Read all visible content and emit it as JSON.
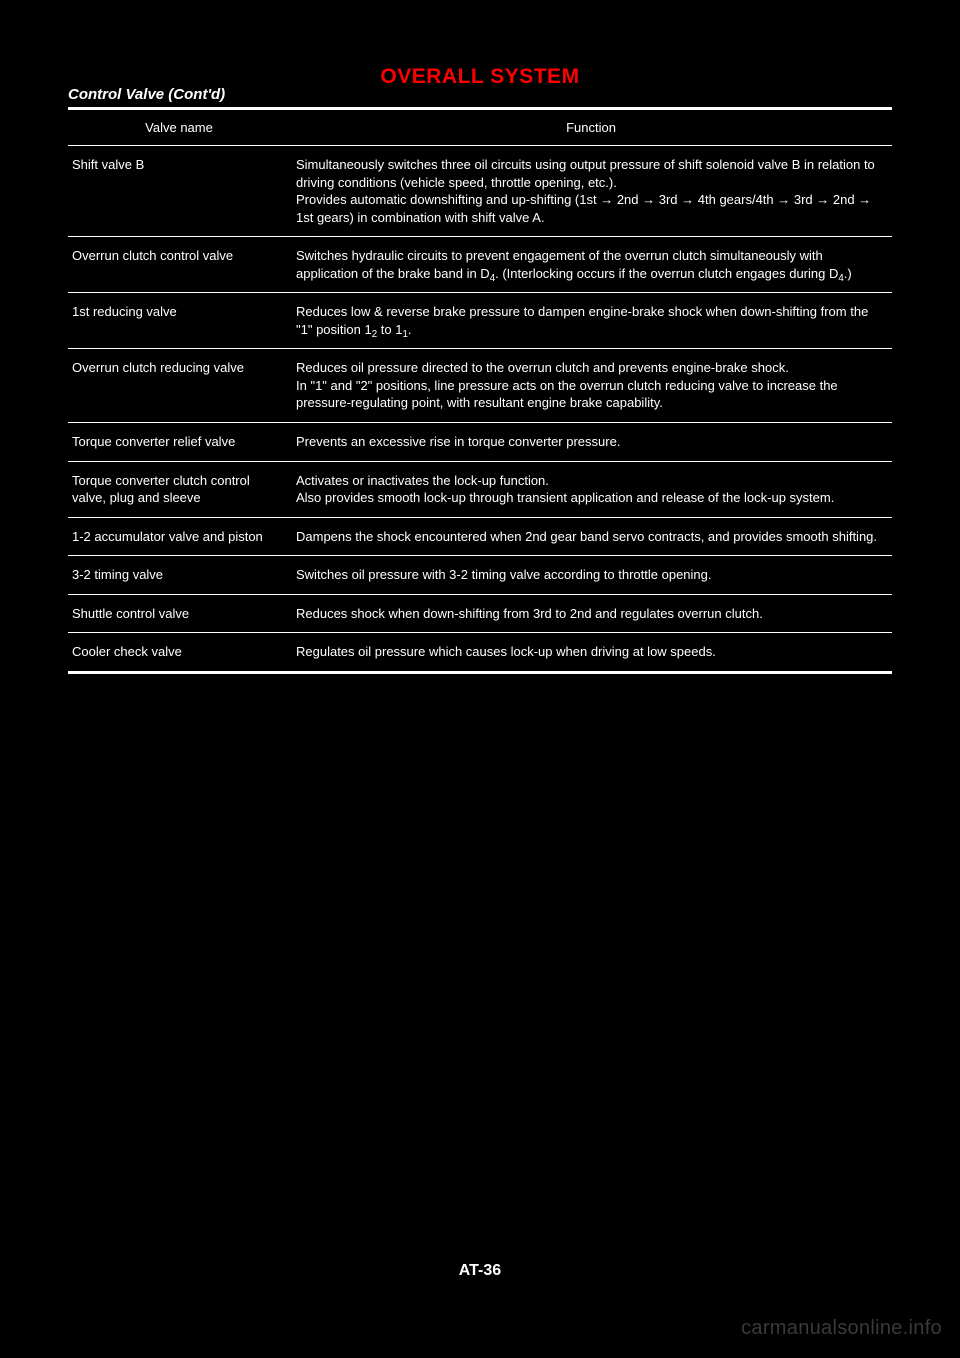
{
  "header": {
    "section_title": "OVERALL SYSTEM",
    "subheading": "Control Valve (Cont'd)"
  },
  "table": {
    "columns": [
      "Valve name",
      "Function"
    ],
    "rows": [
      {
        "name": "Shift valve B",
        "func": "Simultaneously switches three oil circuits using output pressure of shift solenoid valve B in relation to driving conditions (vehicle speed, throttle opening, etc.).\nProvides automatic downshifting and up-shifting (1st → 2nd → 3rd → 4th gears/4th → 3rd → 2nd → 1st gears) in combination with shift valve A."
      },
      {
        "name": "Overrun clutch control valve",
        "func": "Switches hydraulic circuits to prevent engagement of the overrun clutch simultaneously with application of the brake band in D<sub>4</sub>. (Interlocking occurs if the overrun clutch engages during D<sub>4</sub>.)"
      },
      {
        "name": "1st reducing valve",
        "func": "Reduces low & reverse brake pressure to dampen engine-brake shock when down-shifting from the \"1\" position 1<sub>2</sub> to 1<sub>1</sub>."
      },
      {
        "name": "Overrun clutch reducing valve",
        "func": "Reduces oil pressure directed to the overrun clutch and prevents engine-brake shock.\nIn \"1\" and \"2\" positions, line pressure acts on the overrun clutch reducing valve to increase the pressure-regulating point, with resultant engine brake capability."
      },
      {
        "name": "Torque converter relief valve",
        "func": "Prevents an excessive rise in torque converter pressure."
      },
      {
        "name": "Torque converter clutch control valve, plug and sleeve",
        "func": "Activates or inactivates the lock-up function.\nAlso provides smooth lock-up through transient application and release of the lock-up system."
      },
      {
        "name": "1-2 accumulator valve and piston",
        "func": "Dampens the shock encountered when 2nd gear band servo contracts, and provides smooth shifting."
      },
      {
        "name": "3-2 timing valve",
        "func": "Switches oil pressure with 3-2 timing valve according to throttle opening."
      },
      {
        "name": "Shuttle control valve",
        "func": "Reduces shock when down-shifting from 3rd to 2nd and regulates overrun clutch."
      },
      {
        "name": "Cooler check valve",
        "func": "Regulates oil pressure which causes lock-up when driving at low speeds."
      }
    ]
  },
  "footer": {
    "page_number": "AT-36",
    "watermark": "carmanualsonline.info"
  },
  "style": {
    "background": "#000000",
    "text_color": "#ffffff",
    "accent_color": "#ff0000",
    "watermark_color": "#3a3a3a"
  }
}
